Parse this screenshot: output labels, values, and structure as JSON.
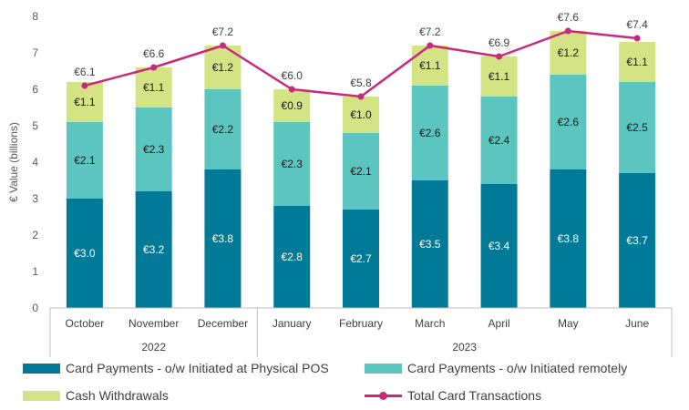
{
  "chart_data": {
    "type": "bar",
    "stacked": true,
    "categories": [
      "October",
      "November",
      "December",
      "January",
      "February",
      "March",
      "April",
      "May",
      "June"
    ],
    "groups": [
      {
        "label": "2022",
        "count": 3
      },
      {
        "label": "2023",
        "count": 6
      }
    ],
    "ylabel": "€ Value (billions)",
    "ylim": [
      0,
      8
    ],
    "yticks": [
      0,
      1,
      2,
      3,
      4,
      5,
      6,
      7,
      8
    ],
    "grid": false,
    "legend_position": "bottom",
    "series": [
      {
        "name": "Card Payments - o/w Initiated at Physical POS",
        "color": "#007A96",
        "label_color": "#ffffff",
        "values": [
          3.0,
          3.2,
          3.8,
          2.8,
          2.7,
          3.5,
          3.4,
          3.8,
          3.7
        ],
        "labels": [
          "€3.0",
          "€3.2",
          "€3.8",
          "€2.8",
          "€2.7",
          "€3.5",
          "€3.4",
          "€3.8",
          "€3.7"
        ]
      },
      {
        "name": "Card Payments - o/w Initiated remotely",
        "color": "#5CC5BF",
        "label_color": "#1a1a1a",
        "values": [
          2.1,
          2.3,
          2.2,
          2.3,
          2.1,
          2.6,
          2.4,
          2.6,
          2.5
        ],
        "labels": [
          "€2.1",
          "€2.3",
          "€2.2",
          "€2.3",
          "€2.1",
          "€2.6",
          "€2.4",
          "€2.6",
          "€2.5"
        ]
      },
      {
        "name": "Cash Withdrawals",
        "color": "#D4E484",
        "label_color": "#1a1a1a",
        "values": [
          1.1,
          1.1,
          1.2,
          0.9,
          1.0,
          1.1,
          1.1,
          1.2,
          1.1
        ],
        "labels": [
          "€1.1",
          "€1.1",
          "€1.2",
          "€0.9",
          "€1.0",
          "€1.1",
          "€1.1",
          "€1.2",
          "€1.1"
        ]
      }
    ],
    "line_series": {
      "name": "Total Card Transactions",
      "color": "#C8297E",
      "values": [
        6.1,
        6.6,
        7.2,
        6.0,
        5.8,
        7.2,
        6.9,
        7.6,
        7.4
      ],
      "labels": [
        "€6.1",
        "€6.6",
        "€7.2",
        "€6.0",
        "€5.8",
        "€7.2",
        "€6.9",
        "€7.6",
        "€7.4"
      ]
    }
  }
}
